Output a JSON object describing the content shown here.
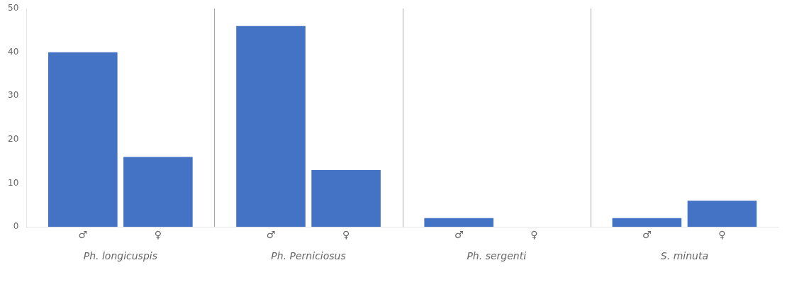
{
  "chart_data": {
    "type": "bar",
    "categories": [
      "Ph. longicuspis",
      "Ph. Perniciosus",
      "Ph. sergenti",
      "S. minuta"
    ],
    "series": [
      {
        "name": "♂",
        "color": "#4472C4",
        "values": [
          40,
          46,
          2,
          2
        ]
      },
      {
        "name": "♀",
        "color": "#4472C4",
        "values": [
          16,
          13,
          0,
          6
        ]
      }
    ],
    "ylim": [
      0,
      50
    ],
    "yticks": [
      0,
      10,
      20,
      30,
      40,
      50
    ],
    "grid": false
  }
}
